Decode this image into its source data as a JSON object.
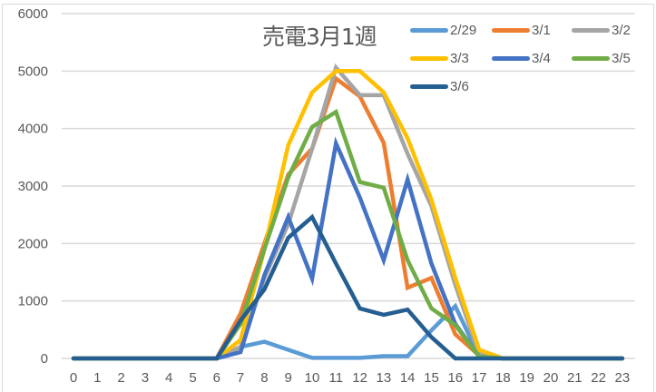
{
  "chart_data": {
    "type": "line",
    "title": "売電3月1週",
    "xlabel": "",
    "ylabel": "",
    "ylim": [
      0,
      6000
    ],
    "yticks": [
      0,
      1000,
      2000,
      3000,
      4000,
      5000,
      6000
    ],
    "grid": true,
    "legend_position": "top-right",
    "x": [
      0,
      1,
      2,
      3,
      4,
      5,
      6,
      7,
      8,
      9,
      10,
      11,
      12,
      13,
      14,
      15,
      16,
      17,
      18,
      19,
      20,
      21,
      22,
      23
    ],
    "series": [
      {
        "name": "2/29",
        "color": "#5B9BD5",
        "values": [
          0,
          0,
          0,
          0,
          0,
          0,
          0,
          200,
          290,
          150,
          10,
          10,
          10,
          40,
          40,
          490,
          910,
          30,
          0,
          0,
          0,
          0,
          0,
          0
        ]
      },
      {
        "name": "3/1",
        "color": "#ED7D31",
        "values": [
          0,
          0,
          0,
          0,
          0,
          0,
          0,
          780,
          2000,
          3200,
          3650,
          4870,
          4560,
          3750,
          1230,
          1400,
          420,
          50,
          0,
          0,
          0,
          0,
          0,
          0
        ]
      },
      {
        "name": "3/2",
        "color": "#A5A5A5",
        "values": [
          0,
          0,
          0,
          0,
          0,
          0,
          0,
          200,
          1400,
          2340,
          3650,
          5060,
          4580,
          4580,
          3560,
          2650,
          1280,
          80,
          0,
          0,
          0,
          0,
          0,
          0
        ]
      },
      {
        "name": "3/3",
        "color": "#FFC000",
        "values": [
          0,
          0,
          0,
          0,
          0,
          0,
          0,
          320,
          1900,
          3710,
          4630,
          5000,
          5000,
          4630,
          3830,
          2760,
          1400,
          150,
          0,
          0,
          0,
          0,
          0,
          0
        ]
      },
      {
        "name": "3/4",
        "color": "#4472C4",
        "values": [
          0,
          0,
          0,
          0,
          0,
          0,
          0,
          110,
          1450,
          2460,
          1390,
          3740,
          2800,
          1710,
          3110,
          1650,
          600,
          30,
          0,
          0,
          0,
          0,
          0,
          0
        ]
      },
      {
        "name": "3/5",
        "color": "#70AD47",
        "values": [
          0,
          0,
          0,
          0,
          0,
          0,
          0,
          600,
          1900,
          3150,
          4030,
          4290,
          3070,
          2970,
          1710,
          870,
          580,
          30,
          0,
          0,
          0,
          0,
          0,
          0
        ]
      },
      {
        "name": "3/6",
        "color": "#255E91",
        "values": [
          0,
          0,
          0,
          0,
          0,
          0,
          0,
          660,
          1200,
          2100,
          2460,
          1650,
          870,
          760,
          850,
          370,
          0,
          0,
          0,
          0,
          0,
          0,
          0,
          0
        ]
      }
    ]
  }
}
